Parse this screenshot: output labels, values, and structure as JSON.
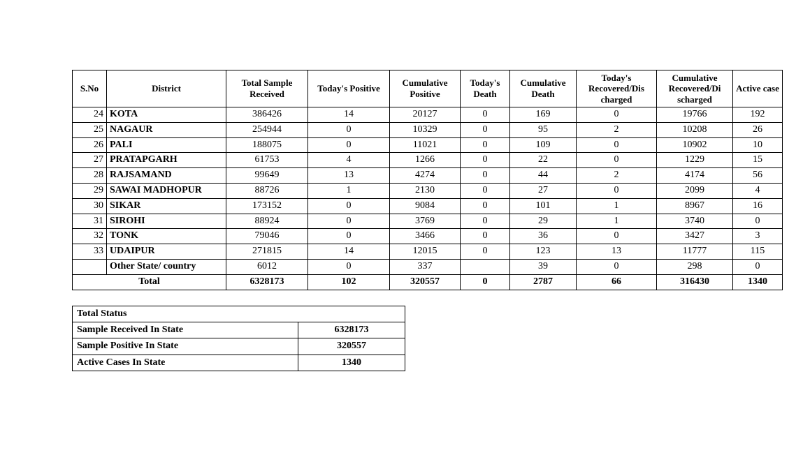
{
  "main": {
    "headers": {
      "sno": "S.No",
      "district": "District",
      "sample": "Total Sample Received",
      "today_pos": "Today's Positive",
      "cum_pos": "Cumulative Positive",
      "today_death": "Today's Death",
      "cum_death": "Cumulative Death",
      "today_rec": "Today's Recovered/Dis charged",
      "cum_rec": "Cumulative Recovered/Di scharged",
      "active": "Active case"
    },
    "rows": [
      {
        "sno": "24",
        "district": "KOTA",
        "sample": "386426",
        "today_pos": "14",
        "cum_pos": "20127",
        "today_death": "0",
        "cum_death": "169",
        "today_rec": "0",
        "cum_rec": "19766",
        "active": "192"
      },
      {
        "sno": "25",
        "district": "NAGAUR",
        "sample": "254944",
        "today_pos": "0",
        "cum_pos": "10329",
        "today_death": "0",
        "cum_death": "95",
        "today_rec": "2",
        "cum_rec": "10208",
        "active": "26"
      },
      {
        "sno": "26",
        "district": "PALI",
        "sample": "188075",
        "today_pos": "0",
        "cum_pos": "11021",
        "today_death": "0",
        "cum_death": "109",
        "today_rec": "0",
        "cum_rec": "10902",
        "active": "10"
      },
      {
        "sno": "27",
        "district": "PRATAPGARH",
        "sample": "61753",
        "today_pos": "4",
        "cum_pos": "1266",
        "today_death": "0",
        "cum_death": "22",
        "today_rec": "0",
        "cum_rec": "1229",
        "active": "15"
      },
      {
        "sno": "28",
        "district": "RAJSAMAND",
        "sample": "99649",
        "today_pos": "13",
        "cum_pos": "4274",
        "today_death": "0",
        "cum_death": "44",
        "today_rec": "2",
        "cum_rec": "4174",
        "active": "56"
      },
      {
        "sno": "29",
        "district": "SAWAI MADHOPUR",
        "sample": "88726",
        "today_pos": "1",
        "cum_pos": "2130",
        "today_death": "0",
        "cum_death": "27",
        "today_rec": "0",
        "cum_rec": "2099",
        "active": "4"
      },
      {
        "sno": "30",
        "district": "SIKAR",
        "sample": "173152",
        "today_pos": "0",
        "cum_pos": "9084",
        "today_death": "0",
        "cum_death": "101",
        "today_rec": "1",
        "cum_rec": "8967",
        "active": "16"
      },
      {
        "sno": "31",
        "district": "SIROHI",
        "sample": "88924",
        "today_pos": "0",
        "cum_pos": "3769",
        "today_death": "0",
        "cum_death": "29",
        "today_rec": "1",
        "cum_rec": "3740",
        "active": "0"
      },
      {
        "sno": "32",
        "district": "TONK",
        "sample": "79046",
        "today_pos": "0",
        "cum_pos": "3466",
        "today_death": "0",
        "cum_death": "36",
        "today_rec": "0",
        "cum_rec": "3427",
        "active": "3"
      },
      {
        "sno": "33",
        "district": "UDAIPUR",
        "sample": "271815",
        "today_pos": "14",
        "cum_pos": "12015",
        "today_death": "0",
        "cum_death": "123",
        "today_rec": "13",
        "cum_rec": "11777",
        "active": "115"
      },
      {
        "sno": "",
        "district": "Other State/ country",
        "sample": "6012",
        "today_pos": "0",
        "cum_pos": "337",
        "today_death": "",
        "cum_death": "39",
        "today_rec": "0",
        "cum_rec": "298",
        "active": "0"
      }
    ],
    "total": {
      "label": "Total",
      "sample": "6328173",
      "today_pos": "102",
      "cum_pos": "320557",
      "today_death": "0",
      "cum_death": "2787",
      "today_rec": "66",
      "cum_rec": "316430",
      "active": "1340"
    }
  },
  "status": {
    "title": "Total Status",
    "rows": [
      {
        "label": "Sample Received In State",
        "value": "6328173"
      },
      {
        "label": "Sample Positive In State",
        "value": "320557"
      },
      {
        "label": "Active Cases In State",
        "value": "1340"
      }
    ]
  }
}
